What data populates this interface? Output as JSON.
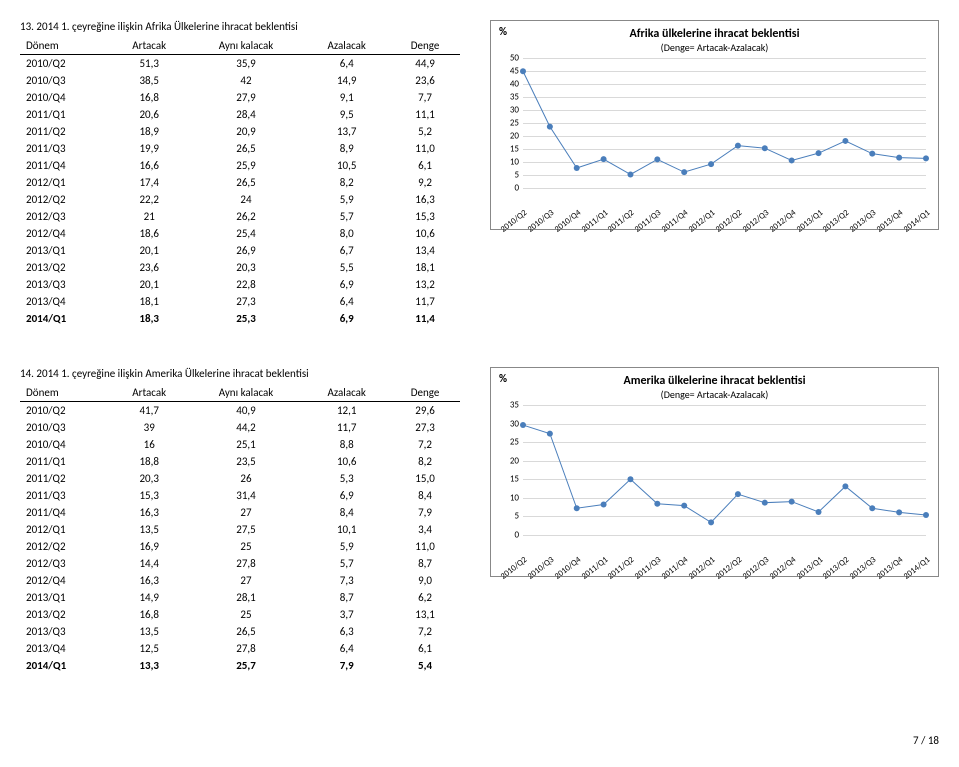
{
  "footer": "7 / 18",
  "tableHeaders": [
    "Dönem",
    "Artacak",
    "Aynı kalacak",
    "Azalacak",
    "Denge"
  ],
  "sections": [
    {
      "title": "13. 2014 1. çeyreğine ilişkin Afrika Ülkelerine ihracat beklentisi",
      "chartTitle": "Afrika ülkelerine ihracat beklentisi",
      "chartSub": "(Denge= Artacak-Azalacak)",
      "yLabel": "%",
      "yMin": 0,
      "yMax": 50,
      "yStep": 5,
      "rows": [
        {
          "d": "2010/Q2",
          "a": "51,3",
          "k": "35,9",
          "z": "6,4",
          "g": "44,9",
          "v": 44.9,
          "b": false
        },
        {
          "d": "2010/Q3",
          "a": "38,5",
          "k": "42",
          "z": "14,9",
          "g": "23,6",
          "v": 23.6,
          "b": false
        },
        {
          "d": "2010/Q4",
          "a": "16,8",
          "k": "27,9",
          "z": "9,1",
          "g": "7,7",
          "v": 7.7,
          "b": false
        },
        {
          "d": "2011/Q1",
          "a": "20,6",
          "k": "28,4",
          "z": "9,5",
          "g": "11,1",
          "v": 11.1,
          "b": false
        },
        {
          "d": "2011/Q2",
          "a": "18,9",
          "k": "20,9",
          "z": "13,7",
          "g": "5,2",
          "v": 5.2,
          "b": false
        },
        {
          "d": "2011/Q3",
          "a": "19,9",
          "k": "26,5",
          "z": "8,9",
          "g": "11,0",
          "v": 11.0,
          "b": false
        },
        {
          "d": "2011/Q4",
          "a": "16,6",
          "k": "25,9",
          "z": "10,5",
          "g": "6,1",
          "v": 6.1,
          "b": false
        },
        {
          "d": "2012/Q1",
          "a": "17,4",
          "k": "26,5",
          "z": "8,2",
          "g": "9,2",
          "v": 9.2,
          "b": false
        },
        {
          "d": "2012/Q2",
          "a": "22,2",
          "k": "24",
          "z": "5,9",
          "g": "16,3",
          "v": 16.3,
          "b": false
        },
        {
          "d": "2012/Q3",
          "a": "21",
          "k": "26,2",
          "z": "5,7",
          "g": "15,3",
          "v": 15.3,
          "b": false
        },
        {
          "d": "2012/Q4",
          "a": "18,6",
          "k": "25,4",
          "z": "8,0",
          "g": "10,6",
          "v": 10.6,
          "b": false
        },
        {
          "d": "2013/Q1",
          "a": "20,1",
          "k": "26,9",
          "z": "6,7",
          "g": "13,4",
          "v": 13.4,
          "b": false
        },
        {
          "d": "2013/Q2",
          "a": "23,6",
          "k": "20,3",
          "z": "5,5",
          "g": "18,1",
          "v": 18.1,
          "b": false
        },
        {
          "d": "2013/Q3",
          "a": "20,1",
          "k": "22,8",
          "z": "6,9",
          "g": "13,2",
          "v": 13.2,
          "b": false
        },
        {
          "d": "2013/Q4",
          "a": "18,1",
          "k": "27,3",
          "z": "6,4",
          "g": "11,7",
          "v": 11.7,
          "b": false
        },
        {
          "d": "2014/Q1",
          "a": "18,3",
          "k": "25,3",
          "z": "6,9",
          "g": "11,4",
          "v": 11.4,
          "b": true
        }
      ],
      "lineColor": "#4a7ebb",
      "markerColor": "#4a7ebb",
      "gridColor": "#d9d9d9"
    },
    {
      "title": "14. 2014 1. çeyreğine ilişkin Amerika Ülkelerine ihracat beklentisi",
      "chartTitle": "Amerika ülkelerine ihracat beklentisi",
      "chartSub": "(Denge= Artacak-Azalacak)",
      "yLabel": "%",
      "yMin": 0,
      "yMax": 35,
      "yStep": 5,
      "rows": [
        {
          "d": "2010/Q2",
          "a": "41,7",
          "k": "40,9",
          "z": "12,1",
          "g": "29,6",
          "v": 29.6,
          "b": false
        },
        {
          "d": "2010/Q3",
          "a": "39",
          "k": "44,2",
          "z": "11,7",
          "g": "27,3",
          "v": 27.3,
          "b": false
        },
        {
          "d": "2010/Q4",
          "a": "16",
          "k": "25,1",
          "z": "8,8",
          "g": "7,2",
          "v": 7.2,
          "b": false
        },
        {
          "d": "2011/Q1",
          "a": "18,8",
          "k": "23,5",
          "z": "10,6",
          "g": "8,2",
          "v": 8.2,
          "b": false
        },
        {
          "d": "2011/Q2",
          "a": "20,3",
          "k": "26",
          "z": "5,3",
          "g": "15,0",
          "v": 15.0,
          "b": false
        },
        {
          "d": "2011/Q3",
          "a": "15,3",
          "k": "31,4",
          "z": "6,9",
          "g": "8,4",
          "v": 8.4,
          "b": false
        },
        {
          "d": "2011/Q4",
          "a": "16,3",
          "k": "27",
          "z": "8,4",
          "g": "7,9",
          "v": 7.9,
          "b": false
        },
        {
          "d": "2012/Q1",
          "a": "13,5",
          "k": "27,5",
          "z": "10,1",
          "g": "3,4",
          "v": 3.4,
          "b": false
        },
        {
          "d": "2012/Q2",
          "a": "16,9",
          "k": "25",
          "z": "5,9",
          "g": "11,0",
          "v": 11.0,
          "b": false
        },
        {
          "d": "2012/Q3",
          "a": "14,4",
          "k": "27,8",
          "z": "5,7",
          "g": "8,7",
          "v": 8.7,
          "b": false
        },
        {
          "d": "2012/Q4",
          "a": "16,3",
          "k": "27",
          "z": "7,3",
          "g": "9,0",
          "v": 9.0,
          "b": false
        },
        {
          "d": "2013/Q1",
          "a": "14,9",
          "k": "28,1",
          "z": "8,7",
          "g": "6,2",
          "v": 6.2,
          "b": false
        },
        {
          "d": "2013/Q2",
          "a": "16,8",
          "k": "25",
          "z": "3,7",
          "g": "13,1",
          "v": 13.1,
          "b": false
        },
        {
          "d": "2013/Q3",
          "a": "13,5",
          "k": "26,5",
          "z": "6,3",
          "g": "7,2",
          "v": 7.2,
          "b": false
        },
        {
          "d": "2013/Q4",
          "a": "12,5",
          "k": "27,8",
          "z": "6,4",
          "g": "6,1",
          "v": 6.1,
          "b": false
        },
        {
          "d": "2014/Q1",
          "a": "13,3",
          "k": "25,7",
          "z": "7,9",
          "g": "5,4",
          "v": 5.4,
          "b": true
        }
      ],
      "lineColor": "#4a7ebb",
      "markerColor": "#4a7ebb",
      "gridColor": "#d9d9d9"
    }
  ]
}
